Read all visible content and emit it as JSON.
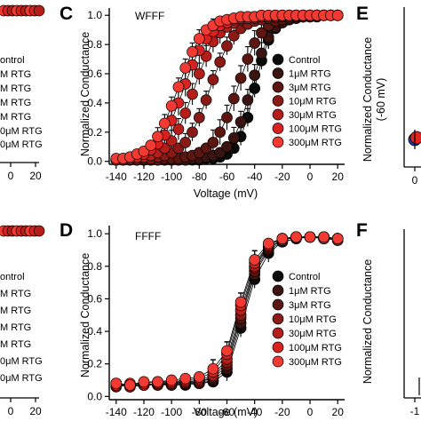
{
  "series_colors": [
    "#0a0a0a",
    "#3a1410",
    "#5c1612",
    "#8a1a16",
    "#b31d1a",
    "#d9221f",
    "#f23a32"
  ],
  "chart_data": [
    {
      "panel": "C",
      "type": "scatter",
      "title": "WFFF",
      "xlabel": "Voltage (mV)",
      "ylabel": "Normalized Conductance",
      "xlim": [
        -145,
        25
      ],
      "ylim": [
        -0.02,
        1.05
      ],
      "xticks": [
        -140,
        -120,
        -100,
        -80,
        -60,
        -40,
        -20,
        0,
        20
      ],
      "yticks": [
        0.0,
        0.2,
        0.4,
        0.6,
        0.8,
        1.0
      ],
      "x": [
        -140,
        -135,
        -130,
        -125,
        -120,
        -115,
        -110,
        -105,
        -100,
        -95,
        -90,
        -85,
        -80,
        -75,
        -70,
        -65,
        -60,
        -55,
        -50,
        -45,
        -40,
        -35,
        -30,
        -25,
        -20,
        -15,
        -10,
        -5,
        0,
        5,
        10,
        15,
        20
      ],
      "legend_position": "center-right",
      "series": [
        {
          "name": "Control",
          "values": [
            0.01,
            0.01,
            0.01,
            0.01,
            0.01,
            0.01,
            0.01,
            0.01,
            0.01,
            0.01,
            0.01,
            0.01,
            0.01,
            0.02,
            0.02,
            0.03,
            0.05,
            0.09,
            0.17,
            0.3,
            0.5,
            0.69,
            0.83,
            0.91,
            0.95,
            0.97,
            0.98,
            0.99,
            0.99,
            0.99,
            1.0,
            1.0,
            1.0
          ]
        },
        {
          "name": "1μM RTG",
          "values": [
            0.01,
            0.01,
            0.01,
            0.01,
            0.01,
            0.01,
            0.01,
            0.01,
            0.01,
            0.01,
            0.01,
            0.02,
            0.02,
            0.03,
            0.04,
            0.06,
            0.1,
            0.16,
            0.27,
            0.42,
            0.59,
            0.74,
            0.85,
            0.92,
            0.95,
            0.97,
            0.98,
            0.99,
            0.99,
            1.0,
            1.0,
            1.0,
            1.0
          ]
        },
        {
          "name": "3μM RTG",
          "values": [
            0.01,
            0.01,
            0.01,
            0.01,
            0.01,
            0.01,
            0.01,
            0.02,
            0.02,
            0.02,
            0.03,
            0.04,
            0.06,
            0.09,
            0.13,
            0.2,
            0.3,
            0.43,
            0.57,
            0.7,
            0.81,
            0.88,
            0.93,
            0.96,
            0.97,
            0.98,
            0.99,
            0.99,
            1.0,
            1.0,
            1.0,
            1.0,
            1.0
          ]
        },
        {
          "name": "10μM RTG",
          "values": [
            0.01,
            0.01,
            0.01,
            0.01,
            0.02,
            0.02,
            0.03,
            0.04,
            0.06,
            0.09,
            0.13,
            0.2,
            0.3,
            0.42,
            0.56,
            0.68,
            0.79,
            0.86,
            0.91,
            0.94,
            0.96,
            0.97,
            0.98,
            0.99,
            0.99,
            0.99,
            1.0,
            1.0,
            1.0,
            1.0,
            1.0,
            1.0,
            1.0
          ]
        },
        {
          "name": "30μM RTG",
          "values": [
            0.01,
            0.01,
            0.02,
            0.02,
            0.03,
            0.04,
            0.06,
            0.09,
            0.14,
            0.22,
            0.33,
            0.46,
            0.6,
            0.72,
            0.82,
            0.88,
            0.92,
            0.95,
            0.97,
            0.98,
            0.98,
            0.99,
            0.99,
            0.99,
            1.0,
            1.0,
            1.0,
            1.0,
            1.0,
            1.0,
            1.0,
            1.0,
            1.0
          ]
        },
        {
          "name": "100μM RTG",
          "values": [
            0.01,
            0.02,
            0.02,
            0.03,
            0.05,
            0.08,
            0.12,
            0.18,
            0.28,
            0.4,
            0.53,
            0.66,
            0.76,
            0.84,
            0.89,
            0.93,
            0.95,
            0.97,
            0.98,
            0.98,
            0.99,
            0.99,
            0.99,
            1.0,
            1.0,
            1.0,
            1.0,
            1.0,
            1.0,
            1.0,
            1.0,
            1.0,
            1.0
          ]
        },
        {
          "name": "300μM RTG",
          "values": [
            0.02,
            0.02,
            0.03,
            0.05,
            0.07,
            0.11,
            0.17,
            0.26,
            0.38,
            0.51,
            0.64,
            0.75,
            0.84,
            0.9,
            0.93,
            0.96,
            0.97,
            0.98,
            0.99,
            0.99,
            0.99,
            1.0,
            1.0,
            1.0,
            1.0,
            1.0,
            1.0,
            1.0,
            1.0,
            1.0,
            1.0,
            1.0,
            1.0
          ]
        }
      ]
    },
    {
      "panel": "D",
      "type": "scatter",
      "title": "FFFF",
      "xlabel": "Voltage (mV)",
      "ylabel": "Normalized Conductance",
      "xlim": [
        -145,
        25
      ],
      "ylim": [
        -0.02,
        1.05
      ],
      "xticks": [
        -140,
        -120,
        -100,
        -80,
        -60,
        -40,
        -20,
        0,
        20
      ],
      "yticks": [
        0.0,
        0.2,
        0.4,
        0.6,
        0.8,
        1.0
      ],
      "x": [
        -140,
        -130,
        -120,
        -110,
        -100,
        -90,
        -80,
        -70,
        -60,
        -50,
        -40,
        -30,
        -20,
        -10,
        0,
        10,
        20
      ],
      "legend_position": "center-right",
      "series": [
        {
          "name": "Control",
          "values": [
            0.08,
            0.06,
            0.07,
            0.07,
            0.07,
            0.07,
            0.08,
            0.09,
            0.15,
            0.42,
            0.72,
            0.88,
            0.95,
            0.97,
            0.98,
            0.98,
            0.97
          ]
        },
        {
          "name": "1μM RTG",
          "values": [
            0.07,
            0.06,
            0.07,
            0.08,
            0.07,
            0.08,
            0.08,
            0.1,
            0.17,
            0.45,
            0.75,
            0.9,
            0.95,
            0.97,
            0.98,
            0.97,
            0.96
          ]
        },
        {
          "name": "3μM RTG",
          "values": [
            0.06,
            0.07,
            0.08,
            0.07,
            0.08,
            0.08,
            0.09,
            0.11,
            0.19,
            0.48,
            0.77,
            0.91,
            0.96,
            0.98,
            0.98,
            0.97,
            0.97
          ]
        },
        {
          "name": "10μM RTG",
          "values": [
            0.07,
            0.06,
            0.07,
            0.08,
            0.08,
            0.09,
            0.09,
            0.12,
            0.21,
            0.5,
            0.79,
            0.92,
            0.96,
            0.98,
            0.98,
            0.98,
            0.97
          ]
        },
        {
          "name": "30μM RTG",
          "values": [
            0.08,
            0.07,
            0.07,
            0.08,
            0.09,
            0.09,
            0.1,
            0.13,
            0.23,
            0.53,
            0.8,
            0.93,
            0.97,
            0.98,
            0.98,
            0.98,
            0.96
          ]
        },
        {
          "name": "100μM RTG",
          "values": [
            0.07,
            0.08,
            0.08,
            0.09,
            0.09,
            0.1,
            0.11,
            0.15,
            0.26,
            0.56,
            0.82,
            0.93,
            0.97,
            0.98,
            0.98,
            0.97,
            0.97
          ]
        },
        {
          "name": "300μM RTG",
          "values": [
            0.08,
            0.07,
            0.09,
            0.09,
            0.1,
            0.11,
            0.12,
            0.17,
            0.28,
            0.58,
            0.84,
            0.94,
            0.97,
            0.98,
            0.98,
            0.98,
            0.97
          ]
        }
      ]
    }
  ],
  "neighbor_panels": {
    "left_top": {
      "xticks": [
        "0",
        "20"
      ],
      "legend": [
        "ontrol",
        "M RTG",
        "M RTG",
        "M RTG",
        "M RTG",
        "0μM RTG",
        "0μM RTG"
      ]
    },
    "left_bottom": {
      "xticks": [
        "0",
        "20"
      ],
      "legend": [
        "ontrol",
        "M RTG",
        "M RTG",
        "M RTG",
        "M RTG",
        "0μM RTG",
        "0μM RTG"
      ]
    },
    "right_top": {
      "letter": "E",
      "ylabel": "Normalized Conductance",
      "ylabel2": "(-60 mV)",
      "xtick": "0"
    },
    "right_bottom": {
      "letter": "F",
      "ylabel": "Normalized Conductance",
      "xtick": "-1"
    }
  }
}
